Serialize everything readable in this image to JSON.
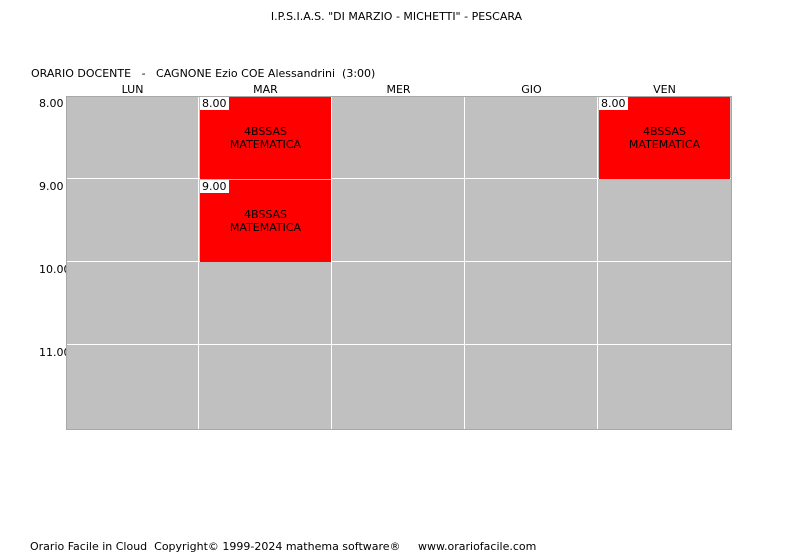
{
  "school_title": "I.P.S.I.A.S. \"DI MARZIO - MICHETTI\" - PESCARA",
  "teacher_header": "ORARIO DOCENTE   -   CAGNONE Ezio COE Alessandrini  (3:00)",
  "days": [
    "LUN",
    "MAR",
    "MER",
    "GIO",
    "VEN"
  ],
  "hours": [
    "8.00",
    "9.00",
    "10.00",
    "11.00"
  ],
  "lessons": [
    {
      "day": "MAR",
      "time": "8.00",
      "class": "4BSSAS",
      "subject": "MATEMATICA"
    },
    {
      "day": "MAR",
      "time": "9.00",
      "class": "4BSSAS",
      "subject": "MATEMATICA"
    },
    {
      "day": "VEN",
      "time": "8.00",
      "class": "4BSSAS",
      "subject": "MATEMATICA"
    }
  ],
  "colors": {
    "lesson": "#ff0000",
    "empty_cell": "#c0c0c0"
  },
  "footer": {
    "text": "Orario Facile in Cloud  Copyright© 1999-2024 mathema software®",
    "link": "www.orariofacile.com"
  }
}
